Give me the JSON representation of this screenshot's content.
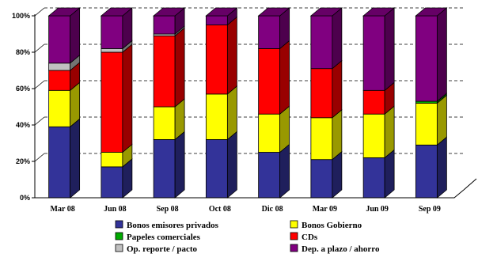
{
  "chart_data": {
    "type": "bar",
    "stacked": true,
    "percent": true,
    "grid": true,
    "legend_position": "bottom",
    "ylim": [
      0,
      100
    ],
    "y_ticks": [
      "0%",
      "20%",
      "40%",
      "60%",
      "80%",
      "100%"
    ],
    "categories": [
      "Mar 08",
      "Jun 08",
      "Sep 08",
      "Oct 08",
      "Dic 08",
      "Mar 09",
      "Jun 09",
      "Sep 09"
    ],
    "series": [
      {
        "name": "Bonos emisores privados",
        "color": "#333399",
        "values": [
          39,
          17,
          32,
          32,
          25,
          21,
          22,
          29
        ]
      },
      {
        "name": "Bonos Gobierno",
        "color": "#ffff00",
        "values": [
          20,
          8,
          18,
          25,
          21,
          23,
          24,
          23
        ]
      },
      {
        "name": "Papeles comerciales",
        "color": "#00aa00",
        "values": [
          0,
          0,
          0,
          0,
          0,
          0,
          0,
          1
        ]
      },
      {
        "name": "CDs",
        "color": "#ff0000",
        "values": [
          11,
          55,
          39,
          38,
          36,
          27,
          13,
          0
        ]
      },
      {
        "name": "Op. reporte / pacto",
        "color": "#c0c0c0",
        "values": [
          4,
          2,
          1,
          0,
          0,
          0,
          0,
          0
        ]
      },
      {
        "name": "Dep. a plazo / ahorro",
        "color": "#800080",
        "values": [
          26,
          18,
          10,
          5,
          18,
          29,
          41,
          47
        ]
      }
    ],
    "legend_order": [
      0,
      1,
      2,
      3,
      4,
      5
    ]
  }
}
